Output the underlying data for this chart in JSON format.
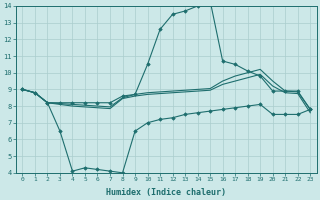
{
  "xlabel": "Humidex (Indice chaleur)",
  "background_color": "#cce8e8",
  "grid_color": "#aacece",
  "line_color": "#1e6e6e",
  "xlim": [
    -0.5,
    23.5
  ],
  "ylim": [
    4,
    14
  ],
  "yticks": [
    4,
    5,
    6,
    7,
    8,
    9,
    10,
    11,
    12,
    13,
    14
  ],
  "xticks": [
    0,
    1,
    2,
    3,
    4,
    5,
    6,
    7,
    8,
    9,
    10,
    11,
    12,
    13,
    14,
    15,
    16,
    17,
    18,
    19,
    20,
    21,
    22,
    23
  ],
  "series": [
    {
      "x": [
        0,
        1,
        2,
        3,
        4,
        5,
        6,
        7,
        8,
        9,
        10,
        11,
        12,
        13,
        14,
        15,
        16,
        17,
        18,
        19,
        20,
        21,
        22,
        23
      ],
      "y": [
        9.0,
        8.8,
        8.2,
        8.2,
        8.2,
        8.2,
        8.2,
        8.2,
        8.6,
        8.7,
        10.5,
        12.6,
        13.5,
        13.7,
        14.0,
        14.3,
        10.7,
        10.5,
        10.1,
        9.8,
        8.9,
        8.9,
        8.9,
        7.8
      ],
      "marker": "D",
      "markersize": 1.8,
      "linewidth": 0.8
    },
    {
      "x": [
        0,
        1,
        2,
        3,
        4,
        5,
        6,
        7,
        8,
        9,
        10,
        11,
        12,
        13,
        14,
        15,
        16,
        17,
        18,
        19,
        20,
        21,
        22,
        23
      ],
      "y": [
        9.0,
        8.8,
        8.2,
        8.15,
        8.1,
        8.05,
        8.0,
        7.95,
        8.5,
        8.7,
        8.8,
        8.85,
        8.9,
        8.95,
        9.0,
        9.05,
        9.5,
        9.8,
        10.0,
        10.2,
        9.5,
        8.9,
        8.85,
        7.8
      ],
      "marker": null,
      "markersize": 0,
      "linewidth": 0.8
    },
    {
      "x": [
        0,
        1,
        2,
        3,
        4,
        5,
        6,
        7,
        8,
        9,
        10,
        11,
        12,
        13,
        14,
        15,
        16,
        17,
        18,
        19,
        20,
        21,
        22,
        23
      ],
      "y": [
        9.0,
        8.8,
        8.2,
        8.1,
        8.0,
        7.95,
        7.9,
        7.85,
        8.45,
        8.6,
        8.7,
        8.75,
        8.8,
        8.85,
        8.9,
        8.95,
        9.3,
        9.5,
        9.7,
        9.9,
        9.2,
        8.8,
        8.75,
        7.6
      ],
      "marker": null,
      "markersize": 0,
      "linewidth": 0.8
    },
    {
      "x": [
        0,
        1,
        2,
        3,
        4,
        5,
        6,
        7,
        8,
        9,
        10,
        11,
        12,
        13,
        14,
        15,
        16,
        17,
        18,
        19,
        20,
        21,
        22,
        23
      ],
      "y": [
        9.0,
        8.8,
        8.2,
        6.5,
        4.1,
        4.3,
        4.2,
        4.1,
        4.0,
        6.5,
        7.0,
        7.2,
        7.3,
        7.5,
        7.6,
        7.7,
        7.8,
        7.9,
        8.0,
        8.1,
        7.5,
        7.5,
        7.5,
        7.8
      ],
      "marker": "D",
      "markersize": 1.8,
      "linewidth": 0.8
    }
  ]
}
